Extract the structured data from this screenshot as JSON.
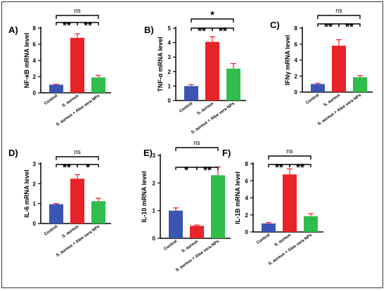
{
  "colors": {
    "control": "#3b55b5",
    "s_aureus": "#e8232a",
    "aloe": "#2fbd4c",
    "error": "#e8232a",
    "axis": "#000000"
  },
  "chart_data": [
    {
      "type": "bar",
      "panel": "A)",
      "ylabel": "NF-κB mRNA level",
      "categories": [
        "Control",
        "S. aureus",
        "S. aureus + Aloe vera NPs"
      ],
      "values": [
        1.0,
        6.8,
        1.9
      ],
      "errors": [
        0.05,
        0.5,
        0.25
      ],
      "ylim": [
        0,
        8
      ],
      "yticks": [
        "0",
        "2",
        "4",
        "6",
        "8"
      ],
      "significance": [
        {
          "from": 0,
          "to": 1,
          "label": "**"
        },
        {
          "from": 1,
          "to": 2,
          "label": "**"
        },
        {
          "from": 0,
          "to": 2,
          "label": "ns"
        }
      ]
    },
    {
      "type": "bar",
      "panel": "B)",
      "ylabel": "TNF-α mRNA level",
      "categories": [
        "Control",
        "S. aureus",
        "S. aureus + Aloe vera NPs"
      ],
      "values": [
        1.0,
        4.05,
        2.2
      ],
      "errors": [
        0.1,
        0.35,
        0.35
      ],
      "ylim": [
        0,
        5
      ],
      "yticks": [
        "0",
        "1",
        "2",
        "3",
        "4",
        "5"
      ],
      "significance": [
        {
          "from": 0,
          "to": 1,
          "label": "**"
        },
        {
          "from": 1,
          "to": 2,
          "label": "**"
        },
        {
          "from": 0,
          "to": 2,
          "label": "*"
        }
      ]
    },
    {
      "type": "bar",
      "panel": "C)",
      "ylabel": "IFNγ mRNA level",
      "categories": [
        "Control",
        "S. aureus",
        "S. aureus + Aloe vera NPs"
      ],
      "values": [
        1.0,
        5.8,
        1.85
      ],
      "errors": [
        0.1,
        0.75,
        0.2
      ],
      "ylim": [
        0,
        8
      ],
      "yticks": [
        "0",
        "2",
        "4",
        "6",
        "8"
      ],
      "significance": [
        {
          "from": 0,
          "to": 1,
          "label": "**"
        },
        {
          "from": 1,
          "to": 2,
          "label": "**"
        },
        {
          "from": 0,
          "to": 2,
          "label": "ns"
        }
      ]
    },
    {
      "type": "bar",
      "panel": "D)",
      "ylabel": "IL-6 mRNA level",
      "categories": [
        "Control",
        "S. aureus",
        "S. aureus + Aloe vera NPs"
      ],
      "values": [
        0.97,
        2.25,
        1.12
      ],
      "errors": [
        0.03,
        0.2,
        0.15
      ],
      "ylim": [
        0,
        3
      ],
      "yticks": [
        "0",
        "1",
        "2",
        "3"
      ],
      "significance": [
        {
          "from": 0,
          "to": 1,
          "label": "**"
        },
        {
          "from": 1,
          "to": 2,
          "label": "*"
        },
        {
          "from": 0,
          "to": 2,
          "label": "ns"
        }
      ]
    },
    {
      "type": "bar",
      "panel": "E)",
      "ylabel": "IL-10 mRNA level",
      "categories": [
        "Control",
        "S. aureus",
        "S. aureus + Aloe vera NPs"
      ],
      "values": [
        1.0,
        0.45,
        2.28
      ],
      "errors": [
        0.1,
        0.03,
        0.3
      ],
      "ylim": [
        0,
        3
      ],
      "yticks": [
        "0",
        "1",
        "2",
        "3"
      ],
      "significance": [
        {
          "from": 0,
          "to": 1,
          "label": "*"
        },
        {
          "from": 1,
          "to": 2,
          "label": "**"
        },
        {
          "from": 0,
          "to": 2,
          "label": "ns"
        }
      ]
    },
    {
      "type": "bar",
      "panel": "F)",
      "ylabel": "IL-1B mRNA level",
      "categories": [
        "Control",
        "S. aureus",
        "S. aureus + Aloe vera NPs"
      ],
      "values": [
        1.0,
        6.75,
        1.85
      ],
      "errors": [
        0.1,
        0.65,
        0.3
      ],
      "ylim": [
        0,
        8
      ],
      "yticks": [
        "0",
        "2",
        "4",
        "6",
        "8"
      ],
      "significance": [
        {
          "from": 0,
          "to": 1,
          "label": "**"
        },
        {
          "from": 1,
          "to": 2,
          "label": "**"
        },
        {
          "from": 0,
          "to": 2,
          "label": "ns"
        }
      ]
    }
  ]
}
